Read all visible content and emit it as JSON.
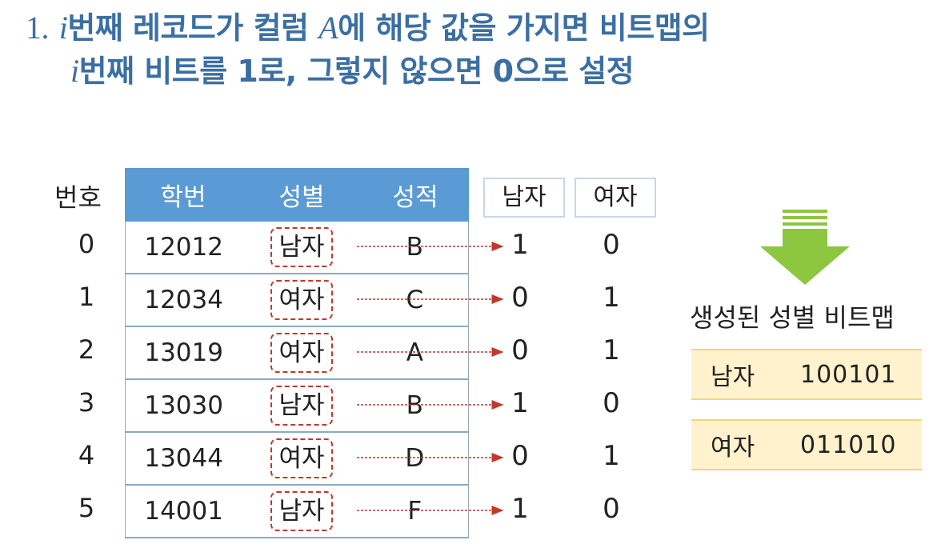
{
  "title": {
    "num": "1.",
    "var_i": "i",
    "line1_a": "번째 레코드가 컬럼 ",
    "var_a": "A",
    "line1_b": "에 해당 값을 가지면 비트맵의",
    "line2": "번째 비트를 1로, 그렇지 않으면 0으로 설정"
  },
  "table": {
    "row_header": "번호",
    "columns": [
      "학번",
      "성별",
      "성적"
    ],
    "rows": [
      {
        "index": "0",
        "id": "12012",
        "gender": "남자",
        "grade": "B"
      },
      {
        "index": "1",
        "id": "12034",
        "gender": "여자",
        "grade": "C"
      },
      {
        "index": "2",
        "id": "13019",
        "gender": "여자",
        "grade": "A"
      },
      {
        "index": "3",
        "id": "13030",
        "gender": "남자",
        "grade": "B"
      },
      {
        "index": "4",
        "id": "13044",
        "gender": "여자",
        "grade": "D"
      },
      {
        "index": "5",
        "id": "14001",
        "gender": "남자",
        "grade": "F"
      }
    ]
  },
  "bit_columns": {
    "male_label": "남자",
    "female_label": "여자",
    "male_bits": [
      "1",
      "0",
      "0",
      "1",
      "0",
      "1"
    ],
    "female_bits": [
      "0",
      "1",
      "1",
      "0",
      "1",
      "0"
    ]
  },
  "result": {
    "caption": "생성된 성별 비트맵",
    "rows": [
      {
        "label": "남자",
        "value": "100101"
      },
      {
        "label": "여자",
        "value": "011010"
      }
    ]
  },
  "colors": {
    "title": "#3b6fa3",
    "table_header": "#5b9bd5",
    "dashed_box": "#c0392b",
    "arrow_down": "#8dc63f",
    "bitmap_fill": "#fff2cc"
  }
}
